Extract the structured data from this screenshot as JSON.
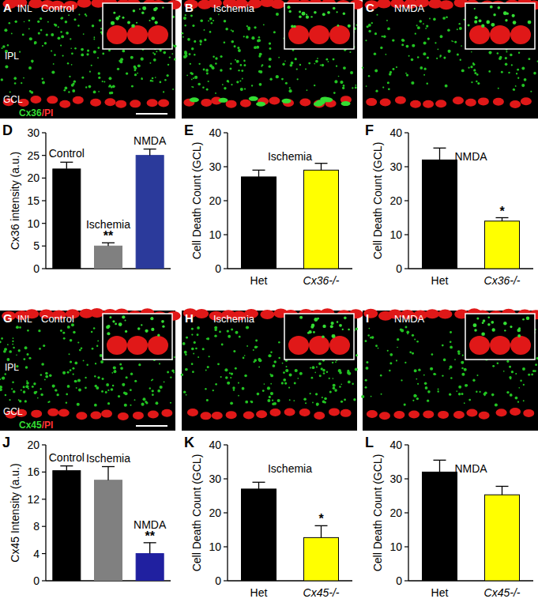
{
  "image_panels": [
    {
      "panel": "A",
      "title": "Control",
      "layers": [
        "INL",
        "IPL",
        "GCL"
      ],
      "stain": [
        {
          "text": "Cx36",
          "color": "#33dd33"
        },
        {
          "text": "/PI",
          "color": "#ff3333"
        }
      ]
    },
    {
      "panel": "B",
      "title": "Ischemia"
    },
    {
      "panel": "C",
      "title": "NMDA"
    },
    {
      "panel": "G",
      "title": "Control",
      "layers": [
        "INL",
        "IPL",
        "GCL"
      ],
      "stain": [
        {
          "text": "Cx45",
          "color": "#33dd33"
        },
        {
          "text": "/PI",
          "color": "#ff3333"
        }
      ]
    },
    {
      "panel": "H",
      "title": "Ischemia"
    },
    {
      "panel": "I",
      "title": "NMDA"
    }
  ],
  "chart_data": [
    {
      "type": "bar",
      "panel": "D",
      "y_label": "Cx36 intensity (a.u.)",
      "categories": [
        "Control",
        "Ischemia",
        "NMDA"
      ],
      "values": [
        22,
        5,
        25
      ],
      "errors": [
        1.5,
        0.7,
        1.4
      ],
      "colors": [
        "#000000",
        "#808080",
        "#2b3a9b"
      ],
      "significance": [
        null,
        "**",
        null
      ],
      "ylim": [
        0,
        30
      ],
      "yticks": [
        0,
        5,
        10,
        15,
        20,
        25,
        30
      ],
      "tick_labels": "y"
    },
    {
      "type": "bar",
      "panel": "E",
      "title": "Ischemia",
      "y_label": "Cell Death Count (GCL)",
      "categories": [
        "Het",
        "Cx36-/-"
      ],
      "values": [
        27,
        29
      ],
      "errors": [
        2,
        2
      ],
      "colors": [
        "#000000",
        "#ffff00"
      ],
      "significance": [
        null,
        null
      ],
      "ylim": [
        0,
        40
      ],
      "yticks": [
        0,
        10,
        20,
        30,
        40
      ]
    },
    {
      "type": "bar",
      "panel": "F",
      "title": "NMDA",
      "y_label": "Cell Death Count (GCL)",
      "categories": [
        "Het",
        "Cx36-/-"
      ],
      "values": [
        32,
        14
      ],
      "errors": [
        3.5,
        1
      ],
      "colors": [
        "#000000",
        "#ffff00"
      ],
      "significance": [
        null,
        "*"
      ],
      "ylim": [
        0,
        40
      ],
      "yticks": [
        0,
        10,
        20,
        30,
        40
      ]
    },
    {
      "type": "bar",
      "panel": "J",
      "y_label": "Cx45 Intensity (a.u.)",
      "categories": [
        "Control",
        "Ischemia",
        "NMDA"
      ],
      "values": [
        16.2,
        14.8,
        4
      ],
      "errors": [
        0.7,
        2,
        1.6
      ],
      "colors": [
        "#000000",
        "#808080",
        "#2020a0"
      ],
      "significance": [
        null,
        null,
        "**"
      ],
      "ylim": [
        0,
        20
      ],
      "yticks": [
        0,
        4,
        8,
        12,
        16,
        20
      ],
      "tick_labels": "y"
    },
    {
      "type": "bar",
      "panel": "K",
      "title": "Ischemia",
      "y_label": "Cell Death Count (GCL)",
      "categories": [
        "Het",
        "Cx45-/-"
      ],
      "values": [
        27,
        12.7
      ],
      "errors": [
        2,
        3.5
      ],
      "colors": [
        "#000000",
        "#ffff00"
      ],
      "significance": [
        null,
        "*"
      ],
      "ylim": [
        0,
        40
      ],
      "yticks": [
        0,
        10,
        20,
        30,
        40
      ]
    },
    {
      "type": "bar",
      "panel": "L",
      "title": "NMDA",
      "y_label": "Cell Death Count (GCL)",
      "categories": [
        "Het",
        "Cx45-/-"
      ],
      "values": [
        32,
        25.3
      ],
      "errors": [
        3.5,
        2.5
      ],
      "colors": [
        "#000000",
        "#ffff00"
      ],
      "significance": [
        null,
        null
      ],
      "ylim": [
        0,
        40
      ],
      "yticks": [
        0,
        10,
        20,
        30,
        40
      ]
    }
  ]
}
